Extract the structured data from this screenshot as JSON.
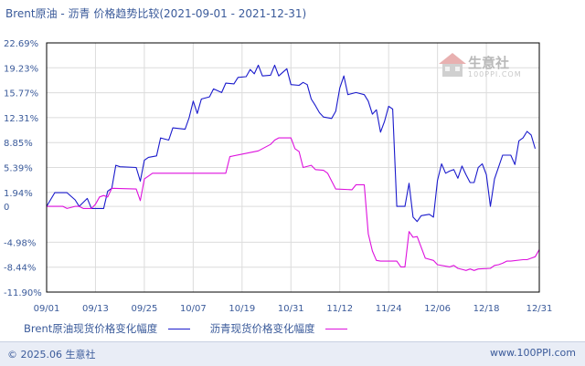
{
  "chart_data": {
    "type": "line",
    "title": "Brent原油 - 沥青 价格趋势比较(2021-09-01 - 2021-12-31)",
    "y_ticks": [
      "22.69%",
      "19.23%",
      "15.77%",
      "12.31%",
      "8.85%",
      "5.39%",
      "1.94%",
      "0",
      "-4.98%",
      "-8.44%",
      "-11.90%"
    ],
    "y_tick_values": [
      22.69,
      19.23,
      15.77,
      12.31,
      8.85,
      5.39,
      1.94,
      0,
      -4.98,
      -8.44,
      -11.9
    ],
    "ylim": [
      -11.9,
      22.69
    ],
    "x_ticks": [
      "09/01",
      "09/13",
      "09/25",
      "10/07",
      "10/19",
      "10/31",
      "11/12",
      "11/24",
      "12/06",
      "12/18",
      "12/31"
    ],
    "x_tick_days": [
      0,
      12,
      24,
      36,
      48,
      60,
      72,
      84,
      96,
      108,
      121
    ],
    "xlim_days": [
      0,
      121
    ],
    "grid": true,
    "legend_position": "bottom",
    "series": [
      {
        "name": "Brent原油现货价格变化幅度",
        "color": "#1a1acc",
        "points": [
          [
            0,
            0
          ],
          [
            2,
            1.9
          ],
          [
            5,
            1.9
          ],
          [
            7,
            0.9
          ],
          [
            8,
            0
          ],
          [
            10,
            1.1
          ],
          [
            11,
            -0.3
          ],
          [
            14,
            -0.3
          ],
          [
            15,
            2.1
          ],
          [
            16,
            2.5
          ],
          [
            17,
            5.7
          ],
          [
            18,
            5.5
          ],
          [
            22,
            5.4
          ],
          [
            23,
            3.5
          ],
          [
            24,
            6.4
          ],
          [
            25,
            6.8
          ],
          [
            27,
            7.0
          ],
          [
            28,
            9.5
          ],
          [
            30,
            9.2
          ],
          [
            31,
            10.9
          ],
          [
            34,
            10.7
          ],
          [
            35,
            12.3
          ],
          [
            36,
            14.6
          ],
          [
            37,
            12.9
          ],
          [
            38,
            14.9
          ],
          [
            40,
            15.2
          ],
          [
            41,
            16.3
          ],
          [
            43,
            15.8
          ],
          [
            44,
            17.1
          ],
          [
            46,
            17.0
          ],
          [
            47,
            17.9
          ],
          [
            49,
            18.0
          ],
          [
            50,
            19.0
          ],
          [
            51,
            18.4
          ],
          [
            52,
            19.6
          ],
          [
            53,
            18.1
          ],
          [
            55,
            18.2
          ],
          [
            56,
            19.6
          ],
          [
            57,
            18.1
          ],
          [
            59,
            19.1
          ],
          [
            60,
            16.9
          ],
          [
            62,
            16.8
          ],
          [
            63,
            17.2
          ],
          [
            64,
            16.9
          ],
          [
            65,
            14.9
          ],
          [
            66,
            14.0
          ],
          [
            67,
            13.0
          ],
          [
            68,
            12.4
          ],
          [
            70,
            12.2
          ],
          [
            71,
            13.2
          ],
          [
            72,
            16.4
          ],
          [
            73,
            18.1
          ],
          [
            74,
            15.5
          ],
          [
            76,
            15.8
          ],
          [
            78,
            15.5
          ],
          [
            79,
            14.6
          ],
          [
            80,
            12.8
          ],
          [
            81,
            13.4
          ],
          [
            82,
            10.3
          ],
          [
            83,
            11.8
          ],
          [
            84,
            13.9
          ],
          [
            85,
            13.5
          ],
          [
            86,
            0
          ],
          [
            88,
            0
          ],
          [
            89,
            3.2
          ],
          [
            90,
            -1.5
          ],
          [
            91,
            -2.1
          ],
          [
            92,
            -1.3
          ],
          [
            94,
            -1.1
          ],
          [
            95,
            -1.5
          ],
          [
            96,
            3.6
          ],
          [
            97,
            5.9
          ],
          [
            98,
            4.6
          ],
          [
            99,
            4.9
          ],
          [
            100,
            5.1
          ],
          [
            101,
            3.9
          ],
          [
            102,
            5.6
          ],
          [
            103,
            4.4
          ],
          [
            104,
            3.3
          ],
          [
            105,
            3.3
          ],
          [
            106,
            5.4
          ],
          [
            107,
            5.9
          ],
          [
            108,
            4.4
          ],
          [
            109,
            0
          ],
          [
            110,
            3.8
          ],
          [
            112,
            7.1
          ],
          [
            113,
            7.1
          ],
          [
            114,
            7.1
          ],
          [
            115,
            5.8
          ],
          [
            116,
            9.1
          ],
          [
            117,
            9.5
          ],
          [
            118,
            10.4
          ],
          [
            119,
            9.9
          ],
          [
            120,
            8.0
          ]
        ]
      },
      {
        "name": "沥青现货价格变化幅度",
        "color": "#dd11dd",
        "points": [
          [
            0,
            0
          ],
          [
            4,
            0
          ],
          [
            5,
            -0.3
          ],
          [
            7,
            0
          ],
          [
            8,
            0
          ],
          [
            9,
            -0.3
          ],
          [
            11,
            -0.3
          ],
          [
            12,
            0.3
          ],
          [
            13,
            1.3
          ],
          [
            14,
            1.5
          ],
          [
            15,
            1.3
          ],
          [
            16,
            2.5
          ],
          [
            22,
            2.4
          ],
          [
            23,
            0.8
          ],
          [
            24,
            3.8
          ],
          [
            25,
            4.2
          ],
          [
            26,
            4.6
          ],
          [
            44,
            4.6
          ],
          [
            45,
            6.9
          ],
          [
            52,
            7.7
          ],
          [
            55,
            8.6
          ],
          [
            56,
            9.2
          ],
          [
            57,
            9.5
          ],
          [
            60,
            9.5
          ],
          [
            61,
            8.0
          ],
          [
            62,
            7.6
          ],
          [
            63,
            5.4
          ],
          [
            65,
            5.7
          ],
          [
            66,
            5.1
          ],
          [
            68,
            5.0
          ],
          [
            69,
            4.6
          ],
          [
            71,
            2.4
          ],
          [
            75,
            2.3
          ],
          [
            76,
            3.0
          ],
          [
            78,
            3.0
          ],
          [
            79,
            -3.8
          ],
          [
            80,
            -6.2
          ],
          [
            81,
            -7.5
          ],
          [
            82,
            -7.6
          ],
          [
            86,
            -7.6
          ],
          [
            87,
            -8.4
          ],
          [
            88,
            -8.4
          ],
          [
            89,
            -3.5
          ],
          [
            90,
            -4.3
          ],
          [
            91,
            -4.2
          ],
          [
            93,
            -7.2
          ],
          [
            95,
            -7.5
          ],
          [
            96,
            -8.1
          ],
          [
            99,
            -8.4
          ],
          [
            100,
            -8.2
          ],
          [
            101,
            -8.6
          ],
          [
            103,
            -8.9
          ],
          [
            104,
            -8.7
          ],
          [
            105,
            -8.9
          ],
          [
            106,
            -8.7
          ],
          [
            109,
            -8.6
          ],
          [
            110,
            -8.2
          ],
          [
            111,
            -8.1
          ],
          [
            112,
            -7.9
          ],
          [
            113,
            -7.6
          ],
          [
            114,
            -7.6
          ],
          [
            117,
            -7.4
          ],
          [
            118,
            -7.4
          ],
          [
            119,
            -7.2
          ],
          [
            120,
            -7.0
          ],
          [
            121,
            -6.0
          ]
        ]
      }
    ]
  },
  "legend": {
    "item1_label": "Brent原油现货价格变化幅度",
    "item2_label": "沥青现货价格变化幅度"
  },
  "watermark": {
    "text": "生意社",
    "url": "100PPI.COM"
  },
  "footer": {
    "left": "© 2025.06 生意社",
    "right": "www.100PPI.com"
  },
  "colors": {
    "series1": "#1a1acc",
    "series2": "#dd11dd",
    "axis_text": "#3a5a9a",
    "grid": "#dcdcdc"
  }
}
